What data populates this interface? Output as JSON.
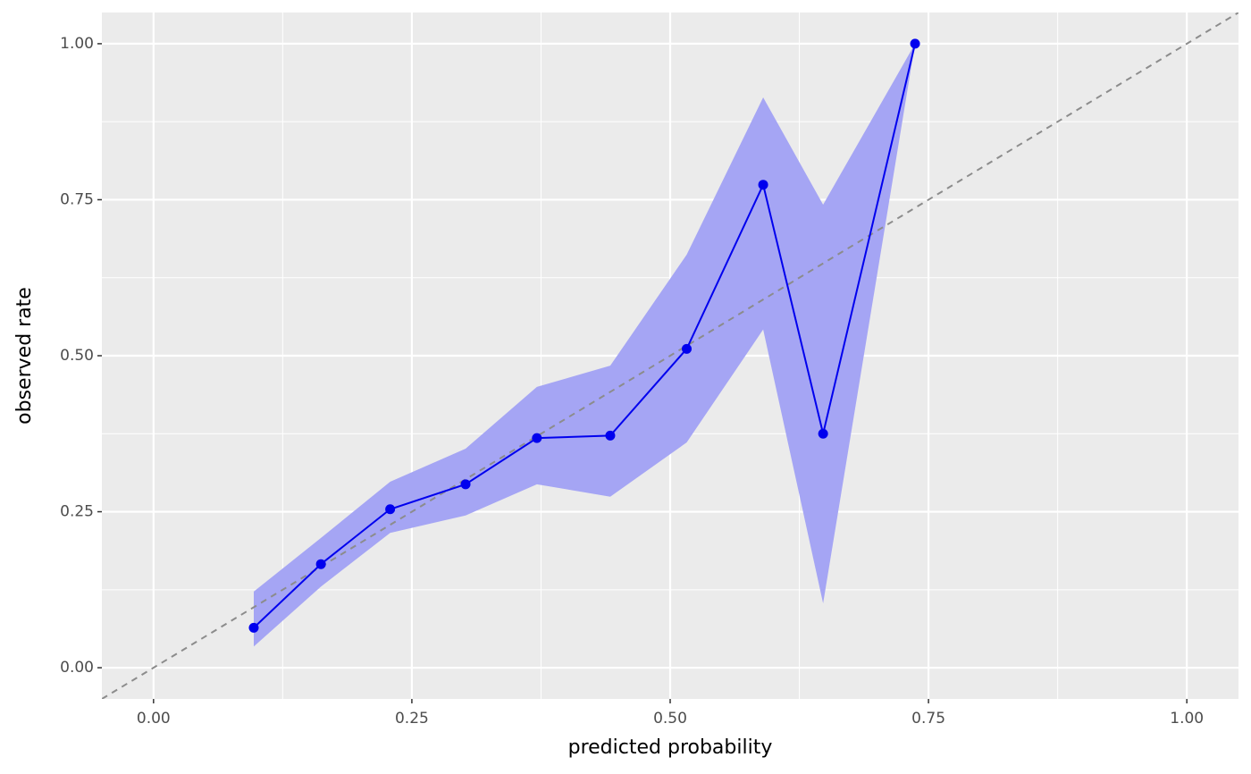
{
  "chart_data": {
    "type": "calibration",
    "x_label": "predicted probability",
    "y_label": "observed rate",
    "x": [
      0.097,
      0.162,
      0.229,
      0.302,
      0.371,
      0.442,
      0.516,
      0.59,
      0.648,
      0.737
    ],
    "y": [
      0.064,
      0.166,
      0.254,
      0.294,
      0.368,
      0.372,
      0.511,
      0.774,
      0.375,
      1.0
    ],
    "lower": [
      0.034,
      0.13,
      0.216,
      0.244,
      0.294,
      0.274,
      0.361,
      0.542,
      0.103,
      1.0
    ],
    "upper": [
      0.122,
      0.208,
      0.298,
      0.351,
      0.45,
      0.484,
      0.662,
      0.914,
      0.742,
      1.0
    ],
    "color": "#0000ee",
    "band_color": "#a5a5f4",
    "reference_line": {
      "slope": 1,
      "intercept": 0,
      "color": "#8c8c8c"
    },
    "xlim": [
      -0.05,
      1.05
    ],
    "ylim": [
      -0.05,
      1.05
    ],
    "xticks": [
      {
        "value": 0,
        "label": "0.00"
      },
      {
        "value": 0.25,
        "label": "0.25"
      },
      {
        "value": 0.5,
        "label": "0.50"
      },
      {
        "value": 0.75,
        "label": "0.75"
      },
      {
        "value": 1,
        "label": "1.00"
      }
    ],
    "yticks": [
      {
        "value": 0,
        "label": "0.00"
      },
      {
        "value": 0.25,
        "label": "0.25"
      },
      {
        "value": 0.5,
        "label": "0.50"
      },
      {
        "value": 0.75,
        "label": "0.75"
      },
      {
        "value": 1,
        "label": "1.00"
      }
    ],
    "minor_xticks": [
      0.125,
      0.375,
      0.625,
      0.875
    ],
    "minor_yticks": [
      0.125,
      0.375,
      0.625,
      0.875
    ],
    "grid": true
  }
}
